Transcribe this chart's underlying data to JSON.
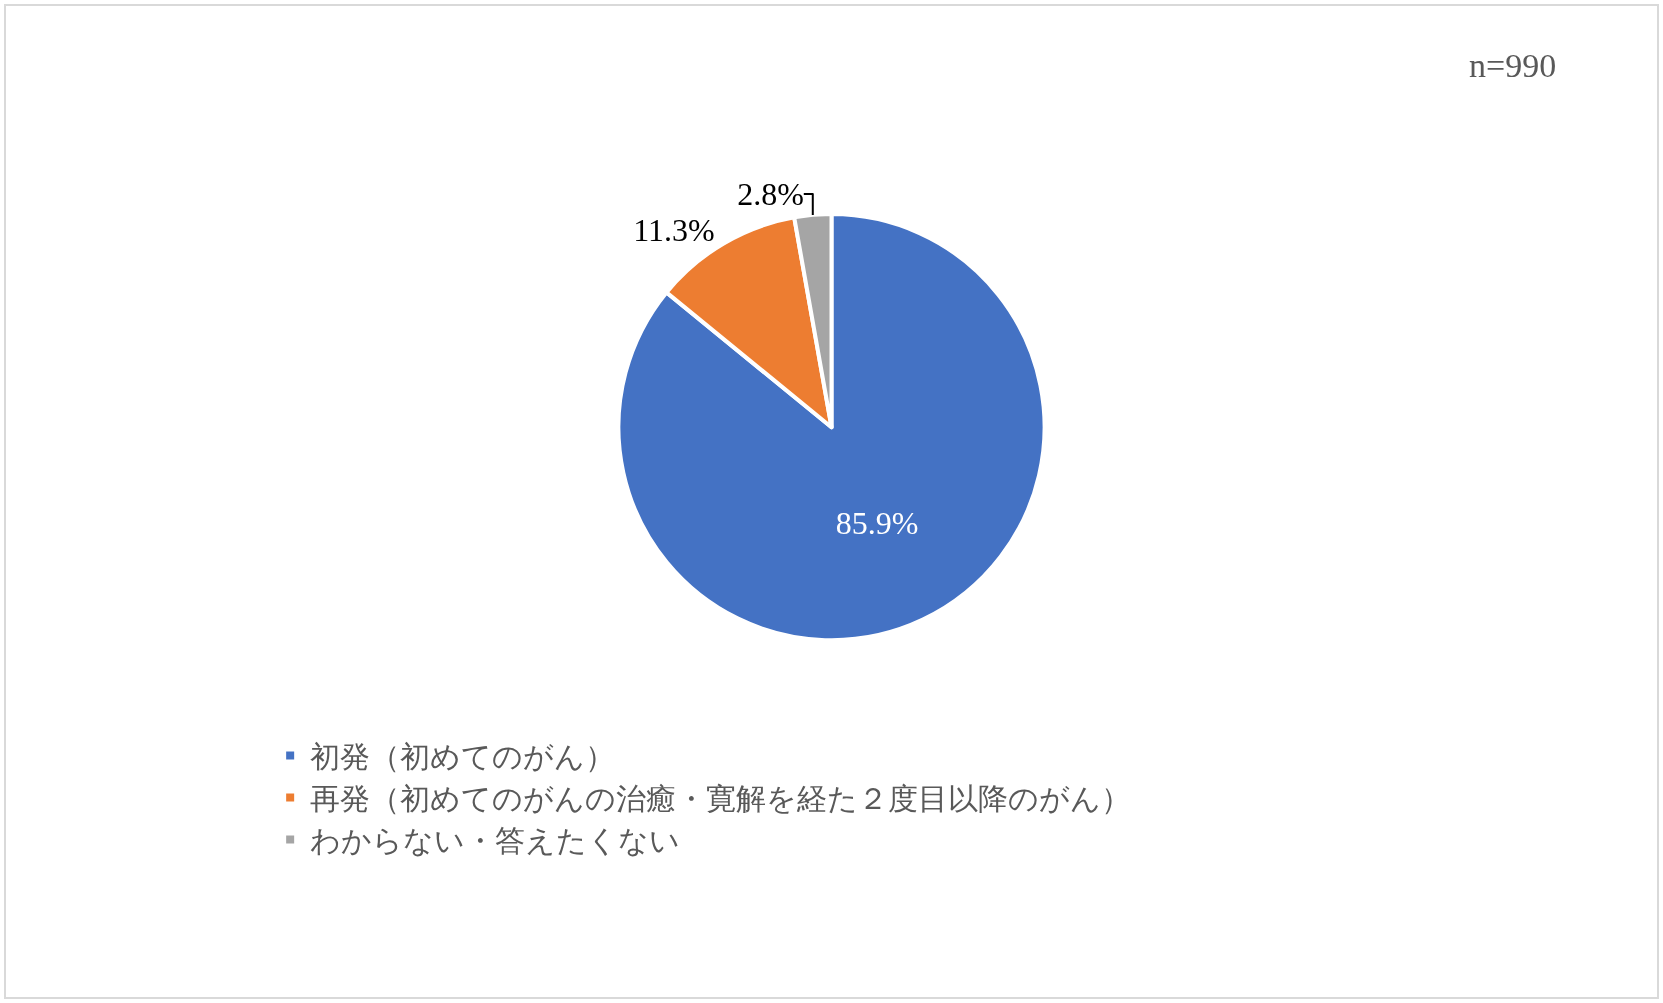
{
  "chart_data": {
    "type": "pie",
    "categories": [
      "初発（初めてのがん）",
      "再発（初めてのがんの治癒・寛解を経た２度目以降のがん）",
      "わからない・答えたくない"
    ],
    "values": [
      85.9,
      11.3,
      2.8
    ],
    "colors": [
      "#4472c4",
      "#ed7d31",
      "#a5a5a5"
    ],
    "value_labels": [
      "85.9%",
      "11.3%",
      "2.8%"
    ],
    "annotations": [
      "n=990"
    ],
    "legend": "bottom"
  }
}
